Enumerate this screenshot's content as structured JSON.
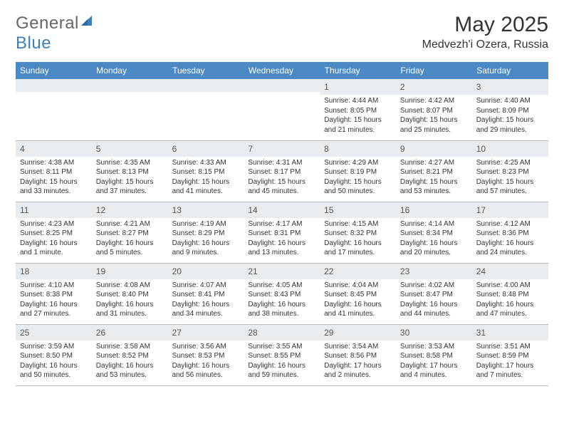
{
  "logo": {
    "text_general": "General",
    "text_blue": "Blue",
    "sail_color": "#3e7fb8"
  },
  "title": "May 2025",
  "location": "Medvezh'i Ozera, Russia",
  "colors": {
    "header_bg": "#4a89c4",
    "header_text": "#ffffff",
    "daynum_bg": "#e9ecef",
    "cell_border": "#b8b8b8",
    "text": "#333333"
  },
  "weekdays": [
    "Sunday",
    "Monday",
    "Tuesday",
    "Wednesday",
    "Thursday",
    "Friday",
    "Saturday"
  ],
  "weeks": [
    [
      null,
      null,
      null,
      null,
      {
        "n": "1",
        "sr": "4:44 AM",
        "ss": "8:05 PM",
        "dl": "15 hours and 21 minutes."
      },
      {
        "n": "2",
        "sr": "4:42 AM",
        "ss": "8:07 PM",
        "dl": "15 hours and 25 minutes."
      },
      {
        "n": "3",
        "sr": "4:40 AM",
        "ss": "8:09 PM",
        "dl": "15 hours and 29 minutes."
      }
    ],
    [
      {
        "n": "4",
        "sr": "4:38 AM",
        "ss": "8:11 PM",
        "dl": "15 hours and 33 minutes."
      },
      {
        "n": "5",
        "sr": "4:35 AM",
        "ss": "8:13 PM",
        "dl": "15 hours and 37 minutes."
      },
      {
        "n": "6",
        "sr": "4:33 AM",
        "ss": "8:15 PM",
        "dl": "15 hours and 41 minutes."
      },
      {
        "n": "7",
        "sr": "4:31 AM",
        "ss": "8:17 PM",
        "dl": "15 hours and 45 minutes."
      },
      {
        "n": "8",
        "sr": "4:29 AM",
        "ss": "8:19 PM",
        "dl": "15 hours and 50 minutes."
      },
      {
        "n": "9",
        "sr": "4:27 AM",
        "ss": "8:21 PM",
        "dl": "15 hours and 53 minutes."
      },
      {
        "n": "10",
        "sr": "4:25 AM",
        "ss": "8:23 PM",
        "dl": "15 hours and 57 minutes."
      }
    ],
    [
      {
        "n": "11",
        "sr": "4:23 AM",
        "ss": "8:25 PM",
        "dl": "16 hours and 1 minute."
      },
      {
        "n": "12",
        "sr": "4:21 AM",
        "ss": "8:27 PM",
        "dl": "16 hours and 5 minutes."
      },
      {
        "n": "13",
        "sr": "4:19 AM",
        "ss": "8:29 PM",
        "dl": "16 hours and 9 minutes."
      },
      {
        "n": "14",
        "sr": "4:17 AM",
        "ss": "8:31 PM",
        "dl": "16 hours and 13 minutes."
      },
      {
        "n": "15",
        "sr": "4:15 AM",
        "ss": "8:32 PM",
        "dl": "16 hours and 17 minutes."
      },
      {
        "n": "16",
        "sr": "4:14 AM",
        "ss": "8:34 PM",
        "dl": "16 hours and 20 minutes."
      },
      {
        "n": "17",
        "sr": "4:12 AM",
        "ss": "8:36 PM",
        "dl": "16 hours and 24 minutes."
      }
    ],
    [
      {
        "n": "18",
        "sr": "4:10 AM",
        "ss": "8:38 PM",
        "dl": "16 hours and 27 minutes."
      },
      {
        "n": "19",
        "sr": "4:08 AM",
        "ss": "8:40 PM",
        "dl": "16 hours and 31 minutes."
      },
      {
        "n": "20",
        "sr": "4:07 AM",
        "ss": "8:41 PM",
        "dl": "16 hours and 34 minutes."
      },
      {
        "n": "21",
        "sr": "4:05 AM",
        "ss": "8:43 PM",
        "dl": "16 hours and 38 minutes."
      },
      {
        "n": "22",
        "sr": "4:04 AM",
        "ss": "8:45 PM",
        "dl": "16 hours and 41 minutes."
      },
      {
        "n": "23",
        "sr": "4:02 AM",
        "ss": "8:47 PM",
        "dl": "16 hours and 44 minutes."
      },
      {
        "n": "24",
        "sr": "4:00 AM",
        "ss": "8:48 PM",
        "dl": "16 hours and 47 minutes."
      }
    ],
    [
      {
        "n": "25",
        "sr": "3:59 AM",
        "ss": "8:50 PM",
        "dl": "16 hours and 50 minutes."
      },
      {
        "n": "26",
        "sr": "3:58 AM",
        "ss": "8:52 PM",
        "dl": "16 hours and 53 minutes."
      },
      {
        "n": "27",
        "sr": "3:56 AM",
        "ss": "8:53 PM",
        "dl": "16 hours and 56 minutes."
      },
      {
        "n": "28",
        "sr": "3:55 AM",
        "ss": "8:55 PM",
        "dl": "16 hours and 59 minutes."
      },
      {
        "n": "29",
        "sr": "3:54 AM",
        "ss": "8:56 PM",
        "dl": "17 hours and 2 minutes."
      },
      {
        "n": "30",
        "sr": "3:53 AM",
        "ss": "8:58 PM",
        "dl": "17 hours and 4 minutes."
      },
      {
        "n": "31",
        "sr": "3:51 AM",
        "ss": "8:59 PM",
        "dl": "17 hours and 7 minutes."
      }
    ]
  ],
  "labels": {
    "sunrise": "Sunrise:",
    "sunset": "Sunset:",
    "daylight": "Daylight:"
  }
}
